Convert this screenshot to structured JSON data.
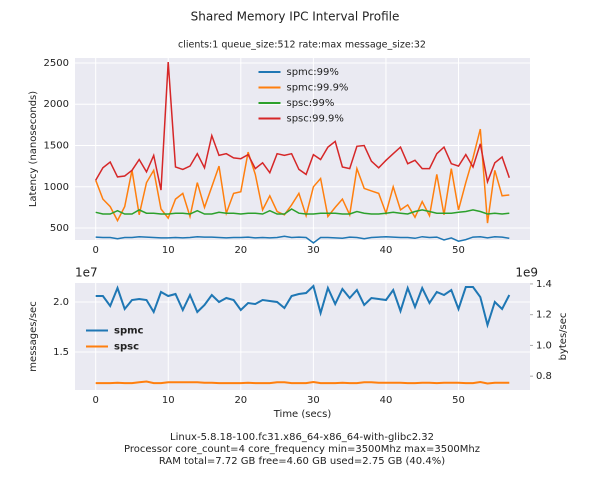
{
  "chart_data": [
    {
      "type": "line",
      "title": "Shared Memory IPC Interval Profile",
      "subtitle": "clients:1 queue_size:512 rate:max message_size:32",
      "ylabel": "Latency (nanoseconds)",
      "grid": true,
      "legend": "upper center",
      "xlim": [
        -2.85,
        59.85
      ],
      "xticks": [
        0,
        10,
        20,
        30,
        40,
        50
      ],
      "ylim": [
        355,
        2560
      ],
      "yticks": [
        500,
        1000,
        1500,
        2000,
        2500
      ],
      "x": [
        0,
        1,
        2,
        3,
        4,
        5,
        6,
        7,
        8,
        9,
        10,
        11,
        12,
        13,
        14,
        15,
        16,
        17,
        18,
        19,
        20,
        21,
        22,
        23,
        24,
        25,
        26,
        27,
        28,
        29,
        30,
        31,
        32,
        33,
        34,
        35,
        36,
        37,
        38,
        39,
        40,
        41,
        42,
        43,
        44,
        45,
        46,
        47,
        48,
        49,
        50,
        51,
        52,
        53,
        54,
        55,
        56,
        57
      ],
      "series": [
        {
          "name": "spmc:99%",
          "color": "#1f77b4",
          "values": [
            390,
            385,
            385,
            370,
            385,
            385,
            395,
            390,
            385,
            380,
            380,
            385,
            380,
            385,
            395,
            390,
            390,
            385,
            380,
            385,
            385,
            390,
            380,
            385,
            380,
            385,
            400,
            385,
            390,
            385,
            320,
            385,
            385,
            380,
            375,
            390,
            385,
            370,
            385,
            390,
            395,
            390,
            385,
            385,
            375,
            395,
            385,
            390,
            355,
            380,
            340,
            360,
            390,
            395,
            380,
            395,
            390,
            375
          ]
        },
        {
          "name": "spmc:99.9%",
          "color": "#ff7f0e",
          "values": [
            1080,
            850,
            760,
            590,
            760,
            1200,
            660,
            1050,
            1200,
            730,
            620,
            850,
            920,
            640,
            1050,
            750,
            1000,
            1250,
            680,
            920,
            940,
            1420,
            1150,
            720,
            890,
            700,
            660,
            780,
            920,
            650,
            1000,
            1100,
            640,
            750,
            850,
            660,
            1220,
            980,
            950,
            920,
            680,
            1000,
            720,
            780,
            630,
            820,
            650,
            1150,
            660,
            1220,
            720,
            1050,
            1350,
            1700,
            560,
            1200,
            890,
            900
          ]
        },
        {
          "name": "spsc:99%",
          "color": "#2ca02c",
          "values": [
            690,
            670,
            670,
            710,
            670,
            670,
            720,
            680,
            680,
            670,
            670,
            680,
            680,
            670,
            710,
            670,
            670,
            690,
            680,
            680,
            670,
            680,
            680,
            670,
            710,
            670,
            670,
            730,
            680,
            670,
            670,
            680,
            680,
            680,
            670,
            670,
            700,
            680,
            670,
            670,
            680,
            690,
            680,
            670,
            700,
            720,
            700,
            680,
            680,
            680,
            690,
            700,
            720,
            700,
            670,
            680,
            670,
            680
          ]
        },
        {
          "name": "spsc:99.9%",
          "color": "#d62728",
          "values": [
            1080,
            1230,
            1300,
            1120,
            1130,
            1200,
            1330,
            1180,
            1380,
            960,
            2510,
            1240,
            1210,
            1250,
            1400,
            1230,
            1620,
            1380,
            1400,
            1350,
            1340,
            1390,
            1220,
            1290,
            1170,
            1400,
            1380,
            1400,
            1210,
            1150,
            1390,
            1330,
            1480,
            1550,
            1240,
            1220,
            1490,
            1500,
            1310,
            1230,
            1320,
            1400,
            1480,
            1280,
            1320,
            1220,
            1220,
            1400,
            1480,
            1280,
            1250,
            1390,
            1240,
            1520,
            1060,
            1290,
            1360,
            1110
          ]
        }
      ]
    },
    {
      "type": "line",
      "xlabel": "Time (secs)",
      "ylabel": "messages/sec",
      "y2label": "bytes/sec",
      "y_offset": "1e7",
      "y2_offset": "1e9",
      "grid": true,
      "legend": "center left",
      "xlim": [
        -2.85,
        59.85
      ],
      "xticks": [
        0,
        10,
        20,
        30,
        40,
        50
      ],
      "ylim": [
        11200000,
        21900000
      ],
      "yticks": [
        {
          "value": 15000000,
          "label": "1.5"
        },
        {
          "value": 20000000,
          "label": "2.0"
        }
      ],
      "y2lim": [
        710000000,
        1406000000
      ],
      "y2ticks": [
        {
          "value": 800000000,
          "label": "0.8"
        },
        {
          "value": 1000000000,
          "label": "1.0"
        },
        {
          "value": 1200000000,
          "label": "1.2"
        },
        {
          "value": 1400000000,
          "label": "1.4"
        }
      ],
      "x": [
        0,
        1,
        2,
        3,
        4,
        5,
        6,
        7,
        8,
        9,
        10,
        11,
        12,
        13,
        14,
        15,
        16,
        17,
        18,
        19,
        20,
        21,
        22,
        23,
        24,
        25,
        26,
        27,
        28,
        29,
        30,
        31,
        32,
        33,
        34,
        35,
        36,
        37,
        38,
        39,
        40,
        41,
        42,
        43,
        44,
        45,
        46,
        47,
        48,
        49,
        50,
        51,
        52,
        53,
        54,
        55,
        56,
        57
      ],
      "series": [
        {
          "name": "spmc",
          "color": "#1f77b4",
          "values": [
            20600000,
            20600000,
            19600000,
            21400000,
            19300000,
            20200000,
            20300000,
            20200000,
            19000000,
            21000000,
            20600000,
            20800000,
            19200000,
            20700000,
            19000000,
            19700000,
            20700000,
            20000000,
            20400000,
            20200000,
            19200000,
            19900000,
            19800000,
            20200000,
            20100000,
            20000000,
            19400000,
            20600000,
            20800000,
            20900000,
            21600000,
            18900000,
            21400000,
            19800000,
            21300000,
            20400000,
            21200000,
            19700000,
            20400000,
            20300000,
            20200000,
            21200000,
            19100000,
            21400000,
            19500000,
            21400000,
            19900000,
            21000000,
            20700000,
            21200000,
            19300000,
            21500000,
            21500000,
            20500000,
            17700000,
            20000000,
            19300000,
            20700000
          ]
        },
        {
          "name": "spsc",
          "color": "#ff7f0e",
          "axis": "y2",
          "values": [
            755000000,
            755000000,
            755000000,
            757000000,
            755000000,
            755000000,
            760000000,
            765000000,
            755000000,
            755000000,
            760000000,
            760000000,
            760000000,
            760000000,
            760000000,
            757000000,
            757000000,
            755000000,
            755000000,
            755000000,
            755000000,
            757000000,
            755000000,
            755000000,
            755000000,
            760000000,
            760000000,
            755000000,
            755000000,
            755000000,
            762000000,
            755000000,
            755000000,
            755000000,
            757000000,
            755000000,
            755000000,
            760000000,
            760000000,
            757000000,
            757000000,
            757000000,
            757000000,
            755000000,
            755000000,
            757000000,
            757000000,
            755000000,
            757000000,
            757000000,
            757000000,
            755000000,
            755000000,
            762000000,
            752000000,
            757000000,
            757000000,
            757000000
          ]
        }
      ]
    }
  ],
  "footer": [
    "Linux-5.8.18-100.fc31.x86_64-x86_64-with-glibc2.32",
    "Processor core_count=4 core_frequency min=3500Mhz max=3500Mhz",
    "RAM total=7.72 GB free=4.60 GB used=2.75 GB (40.4%)"
  ]
}
